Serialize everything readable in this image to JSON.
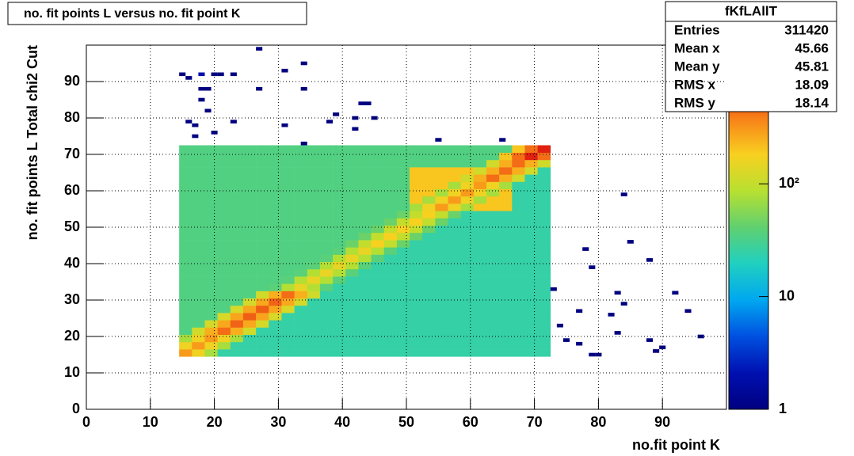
{
  "chart_data": {
    "type": "heatmap",
    "title": "no. fit points L versus no. fit point K",
    "x_label": "no.fit point K",
    "y_label": "no. fit points  L   Total chi2 Cut",
    "xlim": [
      0,
      100
    ],
    "ylim": [
      0,
      100
    ],
    "zlim": [
      1,
      1700
    ],
    "z_log": true,
    "grid": true,
    "xticks": [
      0,
      10,
      20,
      30,
      40,
      50,
      60,
      70,
      80,
      90
    ],
    "yticks": [
      0,
      10,
      20,
      30,
      40,
      50,
      60,
      70,
      80,
      90
    ],
    "zticks": [
      1,
      10,
      {
        "value": 100,
        "label": "10²"
      }
    ],
    "palette": [
      "#000080",
      "#0010b0",
      "#0050e0",
      "#00a8f0",
      "#20d0c0",
      "#60d070",
      "#b8e030",
      "#f8d020",
      "#f88018",
      "#e02010",
      "#800000"
    ],
    "xbins": [
      14.5,
      16.5,
      18.5,
      20.5,
      22.5,
      24.5,
      26.5,
      28.5,
      30.5,
      32.5,
      34.5,
      36.5,
      38.5,
      40.5,
      42.5,
      44.5,
      46.5,
      48.5,
      50.5,
      52.5,
      54.5,
      56.5,
      58.5,
      60.5,
      62.5,
      64.5,
      66.5,
      68.5,
      70.5,
      72.5
    ],
    "ybins": [
      14.5,
      16.5,
      18.5,
      20.5,
      22.5,
      24.5,
      26.5,
      28.5,
      30.5,
      32.5,
      34.5,
      36.5,
      38.5,
      40.5,
      42.5,
      44.5,
      46.5,
      48.5,
      50.5,
      52.5,
      54.5,
      56.5,
      58.5,
      60.5,
      62.5,
      64.5,
      66.5,
      68.5,
      70.5,
      72.5
    ],
    "z": [
      [
        300,
        165,
        75,
        25,
        25,
        25,
        25,
        25,
        25,
        25,
        25,
        25,
        25,
        25,
        25,
        25,
        25,
        25,
        25,
        25,
        25,
        25,
        25,
        25,
        25,
        25,
        25,
        25,
        25
      ],
      [
        165,
        300,
        165,
        75,
        25,
        25,
        25,
        25,
        25,
        25,
        25,
        25,
        25,
        25,
        25,
        25,
        25,
        25,
        25,
        25,
        25,
        25,
        25,
        25,
        25,
        25,
        25,
        25,
        25
      ],
      [
        75,
        165,
        300,
        165,
        75,
        25,
        25,
        25,
        25,
        25,
        25,
        25,
        25,
        25,
        25,
        25,
        25,
        25,
        25,
        25,
        25,
        25,
        25,
        25,
        25,
        25,
        25,
        25,
        25
      ],
      [
        35,
        113,
        248,
        450,
        248,
        113,
        25,
        25,
        25,
        25,
        25,
        25,
        25,
        25,
        25,
        25,
        25,
        25,
        25,
        25,
        25,
        25,
        25,
        25,
        25,
        25,
        25,
        25,
        25
      ],
      [
        35,
        35,
        120,
        264,
        480,
        264,
        120,
        25,
        25,
        25,
        25,
        25,
        25,
        25,
        25,
        25,
        25,
        25,
        25,
        25,
        25,
        25,
        25,
        25,
        25,
        25,
        25,
        25,
        25
      ],
      [
        35,
        35,
        35,
        125,
        275,
        500,
        275,
        125,
        25,
        25,
        25,
        25,
        25,
        25,
        25,
        25,
        25,
        25,
        25,
        25,
        25,
        25,
        25,
        25,
        25,
        25,
        25,
        25,
        25
      ],
      [
        35,
        35,
        35,
        35,
        125,
        275,
        500,
        275,
        125,
        25,
        25,
        25,
        25,
        25,
        25,
        25,
        25,
        25,
        25,
        25,
        25,
        25,
        25,
        25,
        25,
        25,
        25,
        25,
        25
      ],
      [
        35,
        35,
        35,
        35,
        35,
        120,
        264,
        480,
        264,
        120,
        25,
        25,
        25,
        25,
        25,
        25,
        25,
        25,
        25,
        25,
        25,
        25,
        25,
        25,
        25,
        25,
        25,
        25,
        25
      ],
      [
        35,
        35,
        35,
        35,
        35,
        35,
        113,
        248,
        450,
        248,
        113,
        25,
        25,
        25,
        25,
        25,
        25,
        25,
        25,
        25,
        25,
        25,
        25,
        25,
        25,
        25,
        25,
        25,
        25
      ],
      [
        35,
        35,
        35,
        35,
        35,
        35,
        35,
        38,
        83,
        150,
        83,
        38,
        25,
        25,
        25,
        25,
        25,
        25,
        25,
        25,
        25,
        25,
        25,
        25,
        25,
        25,
        25,
        25,
        25
      ],
      [
        35,
        35,
        35,
        35,
        35,
        35,
        35,
        35,
        38,
        83,
        150,
        83,
        38,
        25,
        25,
        25,
        25,
        25,
        25,
        25,
        25,
        25,
        25,
        25,
        25,
        25,
        25,
        25,
        25
      ],
      [
        35,
        35,
        35,
        35,
        35,
        35,
        35,
        35,
        35,
        38,
        83,
        150,
        83,
        38,
        25,
        25,
        25,
        25,
        25,
        25,
        25,
        25,
        25,
        25,
        25,
        25,
        25,
        25,
        25
      ],
      [
        35,
        35,
        35,
        35,
        35,
        35,
        35,
        35,
        35,
        35,
        38,
        83,
        150,
        83,
        38,
        25,
        25,
        25,
        25,
        25,
        25,
        25,
        25,
        25,
        25,
        25,
        25,
        25,
        25
      ],
      [
        35,
        35,
        35,
        35,
        35,
        35,
        35,
        35,
        35,
        35,
        35,
        38,
        83,
        150,
        83,
        38,
        25,
        25,
        25,
        25,
        25,
        25,
        25,
        25,
        25,
        25,
        25,
        25,
        25
      ],
      [
        35,
        35,
        35,
        35,
        35,
        35,
        35,
        35,
        35,
        35,
        35,
        35,
        38,
        83,
        150,
        83,
        38,
        25,
        25,
        25,
        25,
        25,
        25,
        25,
        25,
        25,
        25,
        25,
        25
      ],
      [
        35,
        35,
        35,
        35,
        35,
        35,
        35,
        35,
        35,
        35,
        35,
        35,
        35,
        45,
        99,
        180,
        99,
        45,
        25,
        25,
        25,
        25,
        25,
        25,
        25,
        25,
        25,
        25,
        25
      ],
      [
        35,
        35,
        35,
        35,
        35,
        35,
        35,
        35,
        35,
        35,
        35,
        35,
        35,
        35,
        45,
        99,
        180,
        99,
        45,
        25,
        25,
        25,
        25,
        25,
        25,
        25,
        25,
        25,
        25
      ],
      [
        35,
        35,
        35,
        35,
        35,
        35,
        35,
        35,
        35,
        35,
        35,
        35,
        35,
        35,
        35,
        45,
        99,
        180,
        99,
        45,
        25,
        25,
        25,
        25,
        25,
        25,
        25,
        25,
        25
      ],
      [
        35,
        35,
        35,
        35,
        35,
        35,
        35,
        35,
        35,
        35,
        35,
        35,
        35,
        35,
        35,
        35,
        45,
        99,
        180,
        99,
        45,
        25,
        25,
        25,
        25,
        25,
        25,
        25,
        25
      ],
      [
        35,
        35,
        35,
        35,
        35,
        35,
        35,
        35,
        35,
        35,
        35,
        35,
        35,
        35,
        35,
        35,
        35,
        45,
        99,
        180,
        99,
        45,
        25,
        25,
        25,
        25,
        25,
        25,
        25
      ],
      [
        35,
        35,
        35,
        35,
        35,
        35,
        35,
        35,
        35,
        35,
        35,
        35,
        35,
        35,
        35,
        35,
        35,
        35,
        75,
        165,
        300,
        165,
        75,
        200,
        200,
        200,
        25,
        25,
        25
      ],
      [
        35,
        35,
        35,
        35,
        35,
        35,
        35,
        35,
        35,
        35,
        35,
        35,
        35,
        35,
        35,
        35,
        35,
        35,
        200,
        75,
        165,
        300,
        165,
        75,
        200,
        200,
        25,
        25,
        25
      ],
      [
        35,
        35,
        35,
        35,
        35,
        35,
        35,
        35,
        35,
        35,
        35,
        35,
        35,
        35,
        35,
        35,
        35,
        35,
        200,
        200,
        75,
        165,
        300,
        165,
        75,
        200,
        25,
        25,
        25
      ],
      [
        35,
        35,
        35,
        35,
        35,
        35,
        35,
        35,
        35,
        35,
        35,
        35,
        35,
        35,
        35,
        35,
        35,
        35,
        200,
        200,
        200,
        75,
        165,
        300,
        165,
        75,
        25,
        25,
        25
      ],
      [
        35,
        35,
        35,
        35,
        35,
        35,
        35,
        35,
        35,
        35,
        35,
        35,
        35,
        35,
        35,
        35,
        35,
        35,
        200,
        200,
        200,
        200,
        113,
        248,
        450,
        248,
        113,
        25,
        25
      ],
      [
        35,
        35,
        35,
        35,
        35,
        35,
        35,
        35,
        35,
        35,
        35,
        35,
        35,
        35,
        35,
        35,
        35,
        35,
        200,
        200,
        200,
        200,
        200,
        113,
        248,
        450,
        248,
        113,
        25
      ],
      [
        35,
        35,
        35,
        35,
        35,
        35,
        35,
        35,
        35,
        35,
        35,
        35,
        35,
        35,
        35,
        35,
        35,
        35,
        35,
        35,
        35,
        35,
        35,
        35,
        113,
        248,
        450,
        248,
        113
      ],
      [
        35,
        35,
        35,
        35,
        35,
        35,
        35,
        35,
        35,
        35,
        35,
        35,
        35,
        35,
        35,
        35,
        35,
        35,
        35,
        35,
        35,
        35,
        35,
        35,
        35,
        200,
        440,
        800,
        440
      ],
      [
        35,
        35,
        35,
        35,
        35,
        35,
        35,
        35,
        35,
        35,
        35,
        35,
        35,
        35,
        35,
        35,
        35,
        35,
        35,
        35,
        35,
        35,
        35,
        35,
        35,
        35,
        200,
        440,
        800
      ]
    ],
    "points": {
      "x": [
        15,
        16,
        18,
        20,
        21,
        23,
        18,
        19,
        18,
        19,
        16,
        17,
        17,
        20,
        23,
        27,
        27,
        31,
        34,
        34,
        31,
        34,
        38,
        39,
        42,
        42,
        43,
        44,
        45,
        55,
        65,
        84,
        85,
        78,
        88,
        79,
        73,
        83,
        92,
        84,
        77,
        94,
        82,
        74,
        83,
        75,
        77,
        88,
        89,
        90,
        79,
        80,
        96
      ],
      "y": [
        92,
        91,
        92,
        92,
        92,
        92,
        88,
        88,
        85,
        82,
        79,
        78,
        75,
        76,
        79,
        99,
        88,
        93,
        95,
        88,
        78,
        73,
        79,
        81,
        80,
        77,
        84,
        84,
        80,
        74,
        74,
        59,
        46,
        44,
        41,
        39,
        33,
        32,
        32,
        29,
        27,
        27,
        26,
        23,
        21,
        19,
        18,
        19,
        16,
        17,
        15,
        15,
        20
      ],
      "values": [
        1,
        1,
        2,
        1,
        1,
        1,
        1,
        1,
        1,
        1,
        1,
        1,
        1,
        1,
        1,
        1,
        1,
        1,
        1,
        1,
        1,
        1,
        1,
        1,
        1,
        1,
        1,
        1,
        1,
        1,
        1,
        1,
        1,
        1,
        1,
        1,
        1,
        1,
        1,
        1,
        1,
        1,
        1,
        1,
        1,
        1,
        1,
        1,
        1,
        1,
        1,
        1,
        1
      ]
    },
    "stats": {
      "title": "fKfLAllT",
      "rows": [
        [
          "Entries",
          "311420"
        ],
        [
          "Mean x",
          "45.66"
        ],
        [
          "Mean y",
          "45.81"
        ],
        [
          "RMS x",
          "18.09"
        ],
        [
          "RMS y",
          "18.14"
        ]
      ]
    }
  }
}
